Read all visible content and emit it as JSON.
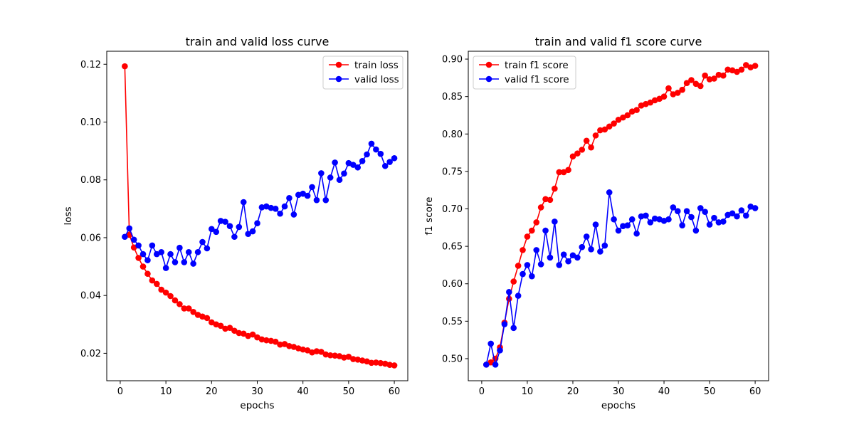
{
  "chart_data": [
    {
      "type": "line",
      "title": "train and valid loss curve",
      "xlabel": "epochs",
      "ylabel": "loss",
      "xlim": [
        -2.95,
        62.95
      ],
      "ylim": [
        0.0105,
        0.1245
      ],
      "xticks": [
        0,
        10,
        20,
        30,
        40,
        50,
        60
      ],
      "yticks": [
        0.02,
        0.04,
        0.06,
        0.08,
        0.1,
        0.12
      ],
      "ytick_labels": [
        "0.02",
        "0.04",
        "0.06",
        "0.08",
        "0.10",
        "0.12"
      ],
      "grid": false,
      "legend_position": "top-right",
      "series": [
        {
          "name": "train loss",
          "color": "#ff0000",
          "x": [
            1,
            2,
            3,
            4,
            5,
            6,
            7,
            8,
            9,
            10,
            11,
            12,
            13,
            14,
            15,
            16,
            17,
            18,
            19,
            20,
            21,
            22,
            23,
            24,
            25,
            26,
            27,
            28,
            29,
            30,
            31,
            32,
            33,
            34,
            35,
            36,
            37,
            38,
            39,
            40,
            41,
            42,
            43,
            44,
            45,
            46,
            47,
            48,
            49,
            50,
            51,
            52,
            53,
            54,
            55,
            56,
            57,
            58,
            59,
            60
          ],
          "y": [
            0.1193,
            0.061,
            0.0566,
            0.053,
            0.05,
            0.0475,
            0.0452,
            0.044,
            0.042,
            0.041,
            0.0398,
            0.0383,
            0.037,
            0.0355,
            0.0355,
            0.0343,
            0.0333,
            0.0327,
            0.0322,
            0.0307,
            0.03,
            0.0295,
            0.0285,
            0.0288,
            0.0278,
            0.027,
            0.0268,
            0.026,
            0.0265,
            0.0255,
            0.0248,
            0.0245,
            0.0243,
            0.024,
            0.023,
            0.0232,
            0.0225,
            0.0222,
            0.0217,
            0.0213,
            0.021,
            0.0203,
            0.0207,
            0.0205,
            0.0196,
            0.0193,
            0.0192,
            0.019,
            0.0185,
            0.0188,
            0.018,
            0.0178,
            0.0175,
            0.0172,
            0.0167,
            0.0168,
            0.0166,
            0.0164,
            0.016,
            0.0158
          ]
        },
        {
          "name": "valid loss",
          "color": "#0000ff",
          "x": [
            1,
            2,
            3,
            4,
            5,
            6,
            7,
            8,
            9,
            10,
            11,
            12,
            13,
            14,
            15,
            16,
            17,
            18,
            19,
            20,
            21,
            22,
            23,
            24,
            25,
            26,
            27,
            28,
            29,
            30,
            31,
            32,
            33,
            34,
            35,
            36,
            37,
            38,
            39,
            40,
            41,
            42,
            43,
            44,
            45,
            46,
            47,
            48,
            49,
            50,
            51,
            52,
            53,
            54,
            55,
            56,
            57,
            58,
            59,
            60
          ],
          "y": [
            0.0603,
            0.0632,
            0.0593,
            0.0573,
            0.0543,
            0.0522,
            0.0573,
            0.0543,
            0.055,
            0.0495,
            0.0543,
            0.0515,
            0.0565,
            0.0515,
            0.055,
            0.051,
            0.055,
            0.0585,
            0.0563,
            0.063,
            0.062,
            0.0658,
            0.0655,
            0.064,
            0.0603,
            0.0637,
            0.0723,
            0.0613,
            0.0622,
            0.065,
            0.0705,
            0.0708,
            0.0703,
            0.07,
            0.0683,
            0.0708,
            0.0737,
            0.068,
            0.0748,
            0.0752,
            0.0745,
            0.0775,
            0.073,
            0.0823,
            0.073,
            0.0808,
            0.086,
            0.08,
            0.0822,
            0.0858,
            0.0852,
            0.0843,
            0.0865,
            0.0888,
            0.0925,
            0.0905,
            0.089,
            0.0848,
            0.0862,
            0.0875
          ]
        }
      ]
    },
    {
      "type": "line",
      "title": "train and valid f1 score curve",
      "xlabel": "epochs",
      "ylabel": "f1 score",
      "xlim": [
        -2.95,
        62.95
      ],
      "ylim": [
        0.4705,
        0.9105
      ],
      "xticks": [
        0,
        10,
        20,
        30,
        40,
        50,
        60
      ],
      "yticks": [
        0.5,
        0.55,
        0.6,
        0.65,
        0.7,
        0.75,
        0.8,
        0.85,
        0.9
      ],
      "ytick_labels": [
        "0.50",
        "0.55",
        "0.60",
        "0.65",
        "0.70",
        "0.75",
        "0.80",
        "0.85",
        "0.90"
      ],
      "grid": false,
      "legend_position": "top-left",
      "series": [
        {
          "name": "train f1 score",
          "color": "#ff0000",
          "x": [
            1,
            2,
            3,
            4,
            5,
            6,
            7,
            8,
            9,
            10,
            11,
            12,
            13,
            14,
            15,
            16,
            17,
            18,
            19,
            20,
            21,
            22,
            23,
            24,
            25,
            26,
            27,
            28,
            29,
            30,
            31,
            32,
            33,
            34,
            35,
            36,
            37,
            38,
            39,
            40,
            41,
            42,
            43,
            44,
            45,
            46,
            47,
            48,
            49,
            50,
            51,
            52,
            53,
            54,
            55,
            56,
            57,
            58,
            59,
            60
          ],
          "y": [
            0.492,
            0.495,
            0.5,
            0.515,
            0.548,
            0.58,
            0.603,
            0.624,
            0.645,
            0.663,
            0.671,
            0.682,
            0.702,
            0.713,
            0.712,
            0.727,
            0.749,
            0.749,
            0.752,
            0.77,
            0.774,
            0.779,
            0.791,
            0.782,
            0.798,
            0.805,
            0.806,
            0.81,
            0.814,
            0.819,
            0.822,
            0.825,
            0.83,
            0.832,
            0.838,
            0.84,
            0.842,
            0.845,
            0.847,
            0.85,
            0.861,
            0.853,
            0.855,
            0.859,
            0.868,
            0.872,
            0.867,
            0.864,
            0.878,
            0.873,
            0.874,
            0.879,
            0.878,
            0.886,
            0.885,
            0.883,
            0.886,
            0.892,
            0.889,
            0.891
          ]
        },
        {
          "name": "valid f1 score",
          "color": "#0000ff",
          "x": [
            1,
            2,
            3,
            4,
            5,
            6,
            7,
            8,
            9,
            10,
            11,
            12,
            13,
            14,
            15,
            16,
            17,
            18,
            19,
            20,
            21,
            22,
            23,
            24,
            25,
            26,
            27,
            28,
            29,
            30,
            31,
            32,
            33,
            34,
            35,
            36,
            37,
            38,
            39,
            40,
            41,
            42,
            43,
            44,
            45,
            46,
            47,
            48,
            49,
            50,
            51,
            52,
            53,
            54,
            55,
            56,
            57,
            58,
            59,
            60
          ],
          "y": [
            0.492,
            0.52,
            0.492,
            0.511,
            0.546,
            0.589,
            0.541,
            0.584,
            0.613,
            0.625,
            0.61,
            0.645,
            0.626,
            0.671,
            0.635,
            0.683,
            0.625,
            0.639,
            0.63,
            0.638,
            0.635,
            0.649,
            0.663,
            0.646,
            0.679,
            0.643,
            0.651,
            0.722,
            0.686,
            0.671,
            0.677,
            0.678,
            0.686,
            0.667,
            0.69,
            0.691,
            0.682,
            0.687,
            0.686,
            0.684,
            0.686,
            0.702,
            0.697,
            0.678,
            0.697,
            0.689,
            0.671,
            0.701,
            0.696,
            0.679,
            0.688,
            0.682,
            0.683,
            0.692,
            0.694,
            0.69,
            0.698,
            0.691,
            0.703,
            0.701
          ]
        }
      ]
    }
  ]
}
